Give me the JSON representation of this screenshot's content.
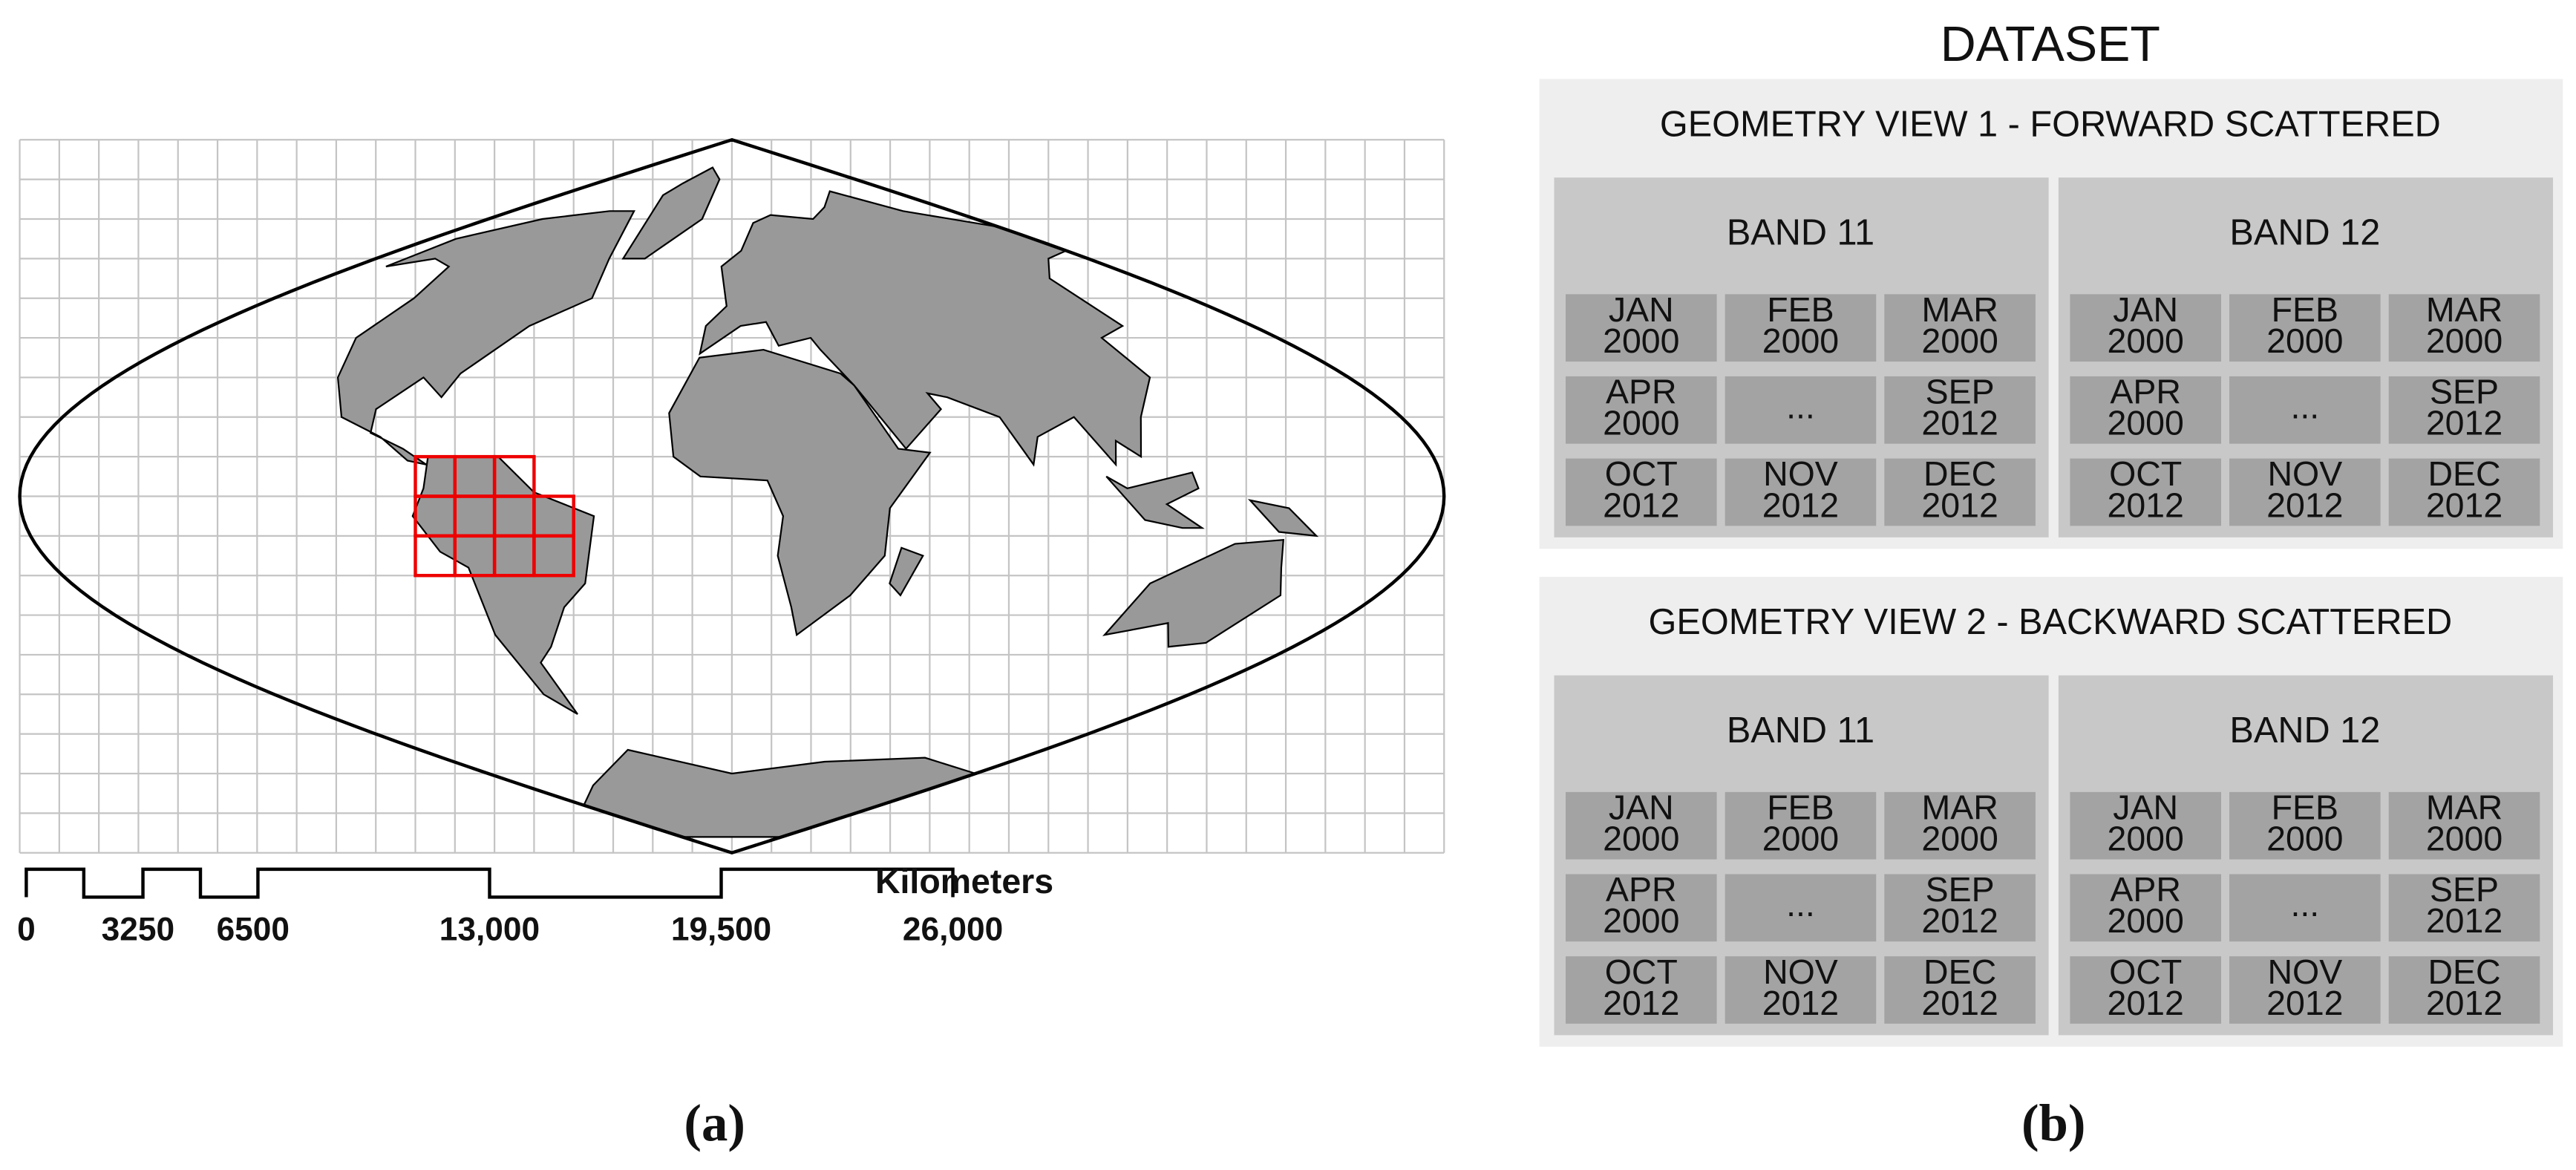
{
  "map": {
    "scale_bar": {
      "labels": [
        "0",
        "3250",
        "6500",
        "13,000",
        "19,500",
        "26,000"
      ],
      "unit": "Kilometers"
    },
    "caption": "(a)"
  },
  "dataset": {
    "title": "DATASET",
    "caption": "(b)",
    "views": [
      {
        "title": "GEOMETRY VIEW 1 - FORWARD SCATTERED",
        "bands": [
          {
            "title": "BAND 11",
            "cells": [
              [
                [
                  "JAN",
                  "2000"
                ],
                [
                  "FEB",
                  "2000"
                ],
                [
                  "MAR",
                  "2000"
                ]
              ],
              [
                [
                  "APR",
                  "2000"
                ],
                [
                  "..."
                ],
                [
                  "SEP",
                  "2012"
                ]
              ],
              [
                [
                  "OCT",
                  "2012"
                ],
                [
                  "NOV",
                  "2012"
                ],
                [
                  "DEC",
                  "2012"
                ]
              ]
            ]
          },
          {
            "title": "BAND 12",
            "cells": [
              [
                [
                  "JAN",
                  "2000"
                ],
                [
                  "FEB",
                  "2000"
                ],
                [
                  "MAR",
                  "2000"
                ]
              ],
              [
                [
                  "APR",
                  "2000"
                ],
                [
                  "..."
                ],
                [
                  "SEP",
                  "2012"
                ]
              ],
              [
                [
                  "OCT",
                  "2012"
                ],
                [
                  "NOV",
                  "2012"
                ],
                [
                  "DEC",
                  "2012"
                ]
              ]
            ]
          }
        ]
      },
      {
        "title": "GEOMETRY VIEW 2 - BACKWARD SCATTERED",
        "bands": [
          {
            "title": "BAND 11",
            "cells": [
              [
                [
                  "JAN",
                  "2000"
                ],
                [
                  "FEB",
                  "2000"
                ],
                [
                  "MAR",
                  "2000"
                ]
              ],
              [
                [
                  "APR",
                  "2000"
                ],
                [
                  "..."
                ],
                [
                  "SEP",
                  "2012"
                ]
              ],
              [
                [
                  "OCT",
                  "2012"
                ],
                [
                  "NOV",
                  "2012"
                ],
                [
                  "DEC",
                  "2012"
                ]
              ]
            ]
          },
          {
            "title": "BAND 12",
            "cells": [
              [
                [
                  "JAN",
                  "2000"
                ],
                [
                  "FEB",
                  "2000"
                ],
                [
                  "MAR",
                  "2000"
                ]
              ],
              [
                [
                  "APR",
                  "2000"
                ],
                [
                  "..."
                ],
                [
                  "SEP",
                  "2012"
                ]
              ],
              [
                [
                  "OCT",
                  "2012"
                ],
                [
                  "NOV",
                  "2012"
                ],
                [
                  "DEC",
                  "2012"
                ]
              ]
            ]
          }
        ]
      }
    ]
  }
}
